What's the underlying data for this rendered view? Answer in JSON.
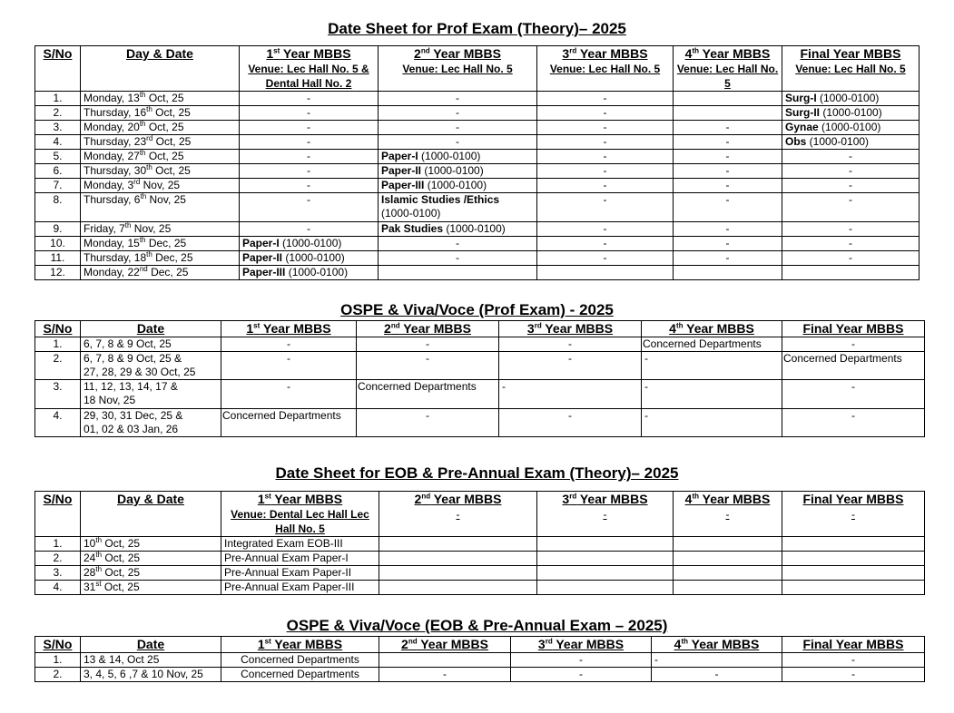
{
  "sections": [
    {
      "title": "Date Sheet for Prof Exam (Theory)– 2025",
      "headers": [
        {
          "lines": [
            {
              "t": "S/No"
            }
          ]
        },
        {
          "lines": [
            {
              "t": "Day & Date"
            }
          ]
        },
        {
          "lines": [
            {
              "pre": "1",
              "sup": "st",
              "post": " Year MBBS"
            },
            {
              "t": "Venue: Lec Hall No. 5 & Dental Hall No. 2",
              "venue": true
            }
          ]
        },
        {
          "lines": [
            {
              "pre": "2",
              "sup": "nd",
              "post": " Year MBBS"
            },
            {
              "t": "Venue: Lec Hall No. 5",
              "venue": true
            }
          ]
        },
        {
          "lines": [
            {
              "pre": "3",
              "sup": "rd",
              "post": " Year MBBS"
            },
            {
              "t": "Venue: Lec Hall No. 5",
              "venue": true
            }
          ]
        },
        {
          "lines": [
            {
              "pre": "4",
              "sup": "th",
              "post": " Year MBBS"
            },
            {
              "t": "Venue: Lec Hall No. 5",
              "venue": true
            }
          ]
        },
        {
          "lines": [
            {
              "t": "Final Year MBBS"
            },
            {
              "t": "Venue: Lec Hall No. 5",
              "venue": true
            }
          ]
        }
      ],
      "rows": [
        [
          "1.",
          {
            "pre": "Monday, 13",
            "sup": "th",
            "post": " Oct, 25"
          },
          "-",
          "-",
          "-",
          "",
          {
            "b": "Surg-I",
            "t": " (1000-0100)"
          }
        ],
        [
          "2.",
          {
            "pre": "Thursday, 16",
            "sup": "th",
            "post": " Oct, 25"
          },
          "-",
          "-",
          "-",
          "",
          {
            "b": "Surg-II",
            "t": " (1000-0100)"
          }
        ],
        [
          "3.",
          {
            "pre": "Monday, 20",
            "sup": "th",
            "post": " Oct, 25"
          },
          "-",
          "-",
          "-",
          "-",
          {
            "b": "Gynae",
            "t": " (1000-0100)"
          }
        ],
        [
          "4.",
          {
            "pre": "Thursday, 23",
            "sup": "rd",
            "post": " Oct, 25"
          },
          "-",
          "-",
          "-",
          "-",
          {
            "b": "Obs",
            "t": " (1000-0100)"
          }
        ],
        [
          "5.",
          {
            "pre": "Monday, 27",
            "sup": "th",
            "post": " Oct, 25"
          },
          "-",
          {
            "b": "Paper-I",
            "t": " (1000-0100)"
          },
          "-",
          "-",
          "-"
        ],
        [
          "6.",
          {
            "pre": "Thursday, 30",
            "sup": "th",
            "post": " Oct, 25"
          },
          "-",
          {
            "b": "Paper-II",
            "t": " (1000-0100)"
          },
          "-",
          "-",
          "-"
        ],
        [
          "7.",
          {
            "pre": "Monday, 3",
            "sup": "rd",
            "post": " Nov, 25"
          },
          "-",
          {
            "b": "Paper-III",
            "t": " (1000-0100)"
          },
          "-",
          "-",
          "-"
        ],
        [
          "8.",
          {
            "pre": "Thursday, 6",
            "sup": "th",
            "post": " Nov, 25"
          },
          "-",
          {
            "b": "Islamic Studies /Ethics",
            "t": "(1000-0100)",
            "br": true
          },
          "-",
          "-",
          "-"
        ],
        [
          "9.",
          {
            "pre": "Friday, 7",
            "sup": "th",
            "post": " Nov, 25"
          },
          "-",
          {
            "b": "Pak Studies",
            "t": " (1000-0100)"
          },
          "-",
          "-",
          "-"
        ],
        [
          "10.",
          {
            "pre": "Monday, 15",
            "sup": "th",
            "post": " Dec, 25"
          },
          {
            "b": "Paper-I",
            "t": " (1000-0100)"
          },
          "-",
          "-",
          "-",
          "-"
        ],
        [
          "11.",
          {
            "pre": "Thursday, 18",
            "sup": "th",
            "post": " Dec, 25"
          },
          {
            "b": "Paper-II",
            "t": " (1000-0100)"
          },
          "-",
          "-",
          "-",
          "-"
        ],
        [
          "12.",
          {
            "pre": "Monday, 22",
            "sup": "nd",
            "post": " Dec, 25"
          },
          {
            "b": "Paper-III",
            "t": " (1000-0100)"
          },
          "",
          "",
          "",
          ""
        ]
      ]
    },
    {
      "title": "OSPE & Viva/Voce (Prof Exam) - 2025",
      "headers": [
        {
          "lines": [
            {
              "t": "S/No"
            }
          ]
        },
        {
          "lines": [
            {
              "t": "Date"
            }
          ]
        },
        {
          "lines": [
            {
              "pre": "1",
              "sup": "st",
              "post": " Year MBBS"
            }
          ]
        },
        {
          "lines": [
            {
              "pre": "2",
              "sup": "nd",
              "post": " Year MBBS"
            }
          ]
        },
        {
          "lines": [
            {
              "pre": "3",
              "sup": "rd",
              "post": " Year MBBS"
            }
          ]
        },
        {
          "lines": [
            {
              "pre": "4",
              "sup": "th",
              "post": " Year MBBS"
            }
          ]
        },
        {
          "lines": [
            {
              "t": "Final Year MBBS"
            }
          ]
        }
      ],
      "rows": [
        [
          "1.",
          "6, 7, 8 & 9 Oct, 25",
          "-",
          "-",
          "-",
          "Concerned Departments",
          "-"
        ],
        [
          "2.",
          {
            "t": "6, 7, 8 & 9 Oct, 25 &",
            "t2": "27, 28, 29 & 30 Oct, 25"
          },
          "-",
          "-",
          "-",
          "-",
          "Concerned Departments"
        ],
        [
          "3.",
          {
            "t": "11, 12, 13, 14, 17 &",
            "t2": "18 Nov, 25"
          },
          "-",
          "Concerned Departments",
          "-",
          "-",
          "-"
        ],
        [
          "4.",
          {
            "t": "29, 30, 31 Dec, 25 &",
            "t2": " 01, 02 & 03 Jan, 26"
          },
          "Concerned Departments",
          "-",
          "-",
          "-",
          "-"
        ]
      ]
    },
    {
      "title": "Date Sheet for EOB & Pre-Annual Exam (Theory)– 2025",
      "headers": [
        {
          "lines": [
            {
              "t": "S/No"
            }
          ]
        },
        {
          "lines": [
            {
              "t": "Day & Date"
            }
          ]
        },
        {
          "lines": [
            {
              "pre": "1",
              "sup": "st",
              "post": " Year MBBS"
            },
            {
              "t": "Venue: Dental Lec Hall Lec Hall No. 5",
              "venue": true,
              "nu": true
            }
          ]
        },
        {
          "lines": [
            {
              "pre": "2",
              "sup": "nd",
              "post": " Year MBBS"
            },
            {
              "t": "-",
              "plain": true
            }
          ]
        },
        {
          "lines": [
            {
              "pre": "3",
              "sup": "rd",
              "post": " Year MBBS"
            },
            {
              "t": "-",
              "plain": true
            }
          ]
        },
        {
          "lines": [
            {
              "pre": "4",
              "sup": "th",
              "post": " Year MBBS"
            },
            {
              "t": "-",
              "plain": true
            }
          ]
        },
        {
          "lines": [
            {
              "t": "Final Year MBBS"
            },
            {
              "t": "-",
              "plain": true
            }
          ]
        }
      ],
      "rows": [
        [
          "1.",
          {
            "pre": "10",
            "sup": "th",
            "post": " Oct, 25"
          },
          "Integrated Exam EOB-III",
          "",
          "",
          "",
          ""
        ],
        [
          "2.",
          {
            "pre": "24",
            "sup": "th",
            "post": " Oct, 25"
          },
          "Pre-Annual Exam Paper-I",
          "",
          "",
          "",
          ""
        ],
        [
          "3.",
          {
            "pre": "28",
            "sup": "th",
            "post": " Oct, 25"
          },
          "Pre-Annual Exam Paper-II",
          "",
          "",
          "",
          ""
        ],
        [
          "4.",
          {
            "pre": "31",
            "sup": "st",
            "post": " Oct, 25"
          },
          "Pre-Annual Exam Paper-III",
          "",
          "",
          "",
          ""
        ]
      ]
    },
    {
      "title": "OSPE & Viva/Voce (EOB & Pre-Annual Exam – 2025)",
      "headers": [
        {
          "lines": [
            {
              "t": "S/No"
            }
          ]
        },
        {
          "lines": [
            {
              "t": "Date"
            }
          ]
        },
        {
          "lines": [
            {
              "pre": "1",
              "sup": "st",
              "post": " Year MBBS"
            }
          ]
        },
        {
          "lines": [
            {
              "pre": "2",
              "sup": "nd",
              "post": " Year MBBS"
            }
          ]
        },
        {
          "lines": [
            {
              "pre": "3",
              "sup": "rd",
              "post": " Year MBBS"
            }
          ]
        },
        {
          "lines": [
            {
              "pre": "4",
              "sup": "th",
              "post": " Year MBBS"
            }
          ]
        },
        {
          "lines": [
            {
              "t": "Final Year MBBS"
            }
          ]
        }
      ],
      "rows": [
        [
          "1.",
          "13 & 14, Oct 25",
          "Concerned Departments",
          "",
          "-",
          "-",
          "-"
        ],
        [
          "2.",
          "3, 4, 5, 6 ,7 & 10 Nov, 25",
          "Concerned Departments",
          "-",
          "-",
          "-",
          "-"
        ]
      ]
    }
  ]
}
